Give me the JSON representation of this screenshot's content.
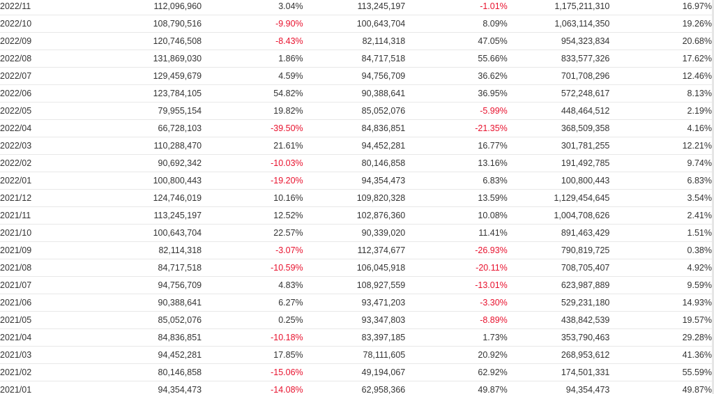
{
  "theme": {
    "text_color": "#333333",
    "negative_color": "#e8112d",
    "border_color": "#e8e8e8"
  },
  "table": {
    "rows": [
      {
        "month": "2022/11",
        "c1": "112,096,960",
        "c2": "3.04%",
        "c3": "113,245,197",
        "c4": "-1.01%",
        "c5": "1,175,211,310",
        "c6": "16.97%"
      },
      {
        "month": "2022/10",
        "c1": "108,790,516",
        "c2": "-9.90%",
        "c3": "100,643,704",
        "c4": "8.09%",
        "c5": "1,063,114,350",
        "c6": "19.26%"
      },
      {
        "month": "2022/09",
        "c1": "120,746,508",
        "c2": "-8.43%",
        "c3": "82,114,318",
        "c4": "47.05%",
        "c5": "954,323,834",
        "c6": "20.68%"
      },
      {
        "month": "2022/08",
        "c1": "131,869,030",
        "c2": "1.86%",
        "c3": "84,717,518",
        "c4": "55.66%",
        "c5": "833,577,326",
        "c6": "17.62%"
      },
      {
        "month": "2022/07",
        "c1": "129,459,679",
        "c2": "4.59%",
        "c3": "94,756,709",
        "c4": "36.62%",
        "c5": "701,708,296",
        "c6": "12.46%"
      },
      {
        "month": "2022/06",
        "c1": "123,784,105",
        "c2": "54.82%",
        "c3": "90,388,641",
        "c4": "36.95%",
        "c5": "572,248,617",
        "c6": "8.13%"
      },
      {
        "month": "2022/05",
        "c1": "79,955,154",
        "c2": "19.82%",
        "c3": "85,052,076",
        "c4": "-5.99%",
        "c5": "448,464,512",
        "c6": "2.19%"
      },
      {
        "month": "2022/04",
        "c1": "66,728,103",
        "c2": "-39.50%",
        "c3": "84,836,851",
        "c4": "-21.35%",
        "c5": "368,509,358",
        "c6": "4.16%"
      },
      {
        "month": "2022/03",
        "c1": "110,288,470",
        "c2": "21.61%",
        "c3": "94,452,281",
        "c4": "16.77%",
        "c5": "301,781,255",
        "c6": "12.21%"
      },
      {
        "month": "2022/02",
        "c1": "90,692,342",
        "c2": "-10.03%",
        "c3": "80,146,858",
        "c4": "13.16%",
        "c5": "191,492,785",
        "c6": "9.74%"
      },
      {
        "month": "2022/01",
        "c1": "100,800,443",
        "c2": "-19.20%",
        "c3": "94,354,473",
        "c4": "6.83%",
        "c5": "100,800,443",
        "c6": "6.83%"
      },
      {
        "month": "2021/12",
        "c1": "124,746,019",
        "c2": "10.16%",
        "c3": "109,820,328",
        "c4": "13.59%",
        "c5": "1,129,454,645",
        "c6": "3.54%"
      },
      {
        "month": "2021/11",
        "c1": "113,245,197",
        "c2": "12.52%",
        "c3": "102,876,360",
        "c4": "10.08%",
        "c5": "1,004,708,626",
        "c6": "2.41%"
      },
      {
        "month": "2021/10",
        "c1": "100,643,704",
        "c2": "22.57%",
        "c3": "90,339,020",
        "c4": "11.41%",
        "c5": "891,463,429",
        "c6": "1.51%"
      },
      {
        "month": "2021/09",
        "c1": "82,114,318",
        "c2": "-3.07%",
        "c3": "112,374,677",
        "c4": "-26.93%",
        "c5": "790,819,725",
        "c6": "0.38%"
      },
      {
        "month": "2021/08",
        "c1": "84,717,518",
        "c2": "-10.59%",
        "c3": "106,045,918",
        "c4": "-20.11%",
        "c5": "708,705,407",
        "c6": "4.92%"
      },
      {
        "month": "2021/07",
        "c1": "94,756,709",
        "c2": "4.83%",
        "c3": "108,927,559",
        "c4": "-13.01%",
        "c5": "623,987,889",
        "c6": "9.59%"
      },
      {
        "month": "2021/06",
        "c1": "90,388,641",
        "c2": "6.27%",
        "c3": "93,471,203",
        "c4": "-3.30%",
        "c5": "529,231,180",
        "c6": "14.93%"
      },
      {
        "month": "2021/05",
        "c1": "85,052,076",
        "c2": "0.25%",
        "c3": "93,347,803",
        "c4": "-8.89%",
        "c5": "438,842,539",
        "c6": "19.57%"
      },
      {
        "month": "2021/04",
        "c1": "84,836,851",
        "c2": "-10.18%",
        "c3": "83,397,185",
        "c4": "1.73%",
        "c5": "353,790,463",
        "c6": "29.28%"
      },
      {
        "month": "2021/03",
        "c1": "94,452,281",
        "c2": "17.85%",
        "c3": "78,111,605",
        "c4": "20.92%",
        "c5": "268,953,612",
        "c6": "41.36%"
      },
      {
        "month": "2021/02",
        "c1": "80,146,858",
        "c2": "-15.06%",
        "c3": "49,194,067",
        "c4": "62.92%",
        "c5": "174,501,331",
        "c6": "55.59%"
      },
      {
        "month": "2021/01",
        "c1": "94,354,473",
        "c2": "-14.08%",
        "c3": "62,958,366",
        "c4": "49.87%",
        "c5": "94,354,473",
        "c6": "49.87%"
      }
    ]
  }
}
